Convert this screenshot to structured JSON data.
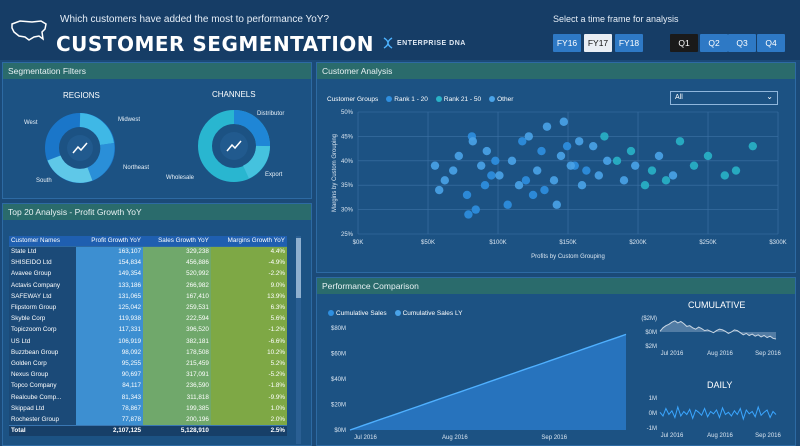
{
  "header": {
    "question": "Which customers have added the most to performance YoY?",
    "title": "CUSTOMER SEGMENTATION",
    "brand": "ENTERPRISE DNA",
    "timeframe_label": "Select a time frame for analysis",
    "fiscal_years": [
      "FY16",
      "FY17",
      "FY18"
    ],
    "selected_fy": "FY17",
    "quarters": [
      "Q1",
      "Q2",
      "Q3",
      "Q4"
    ],
    "selected_quarter": "Q1"
  },
  "filters": {
    "title": "Segmentation Filters",
    "regions_title": "REGIONS",
    "regions": [
      "West",
      "Midwest",
      "Northeast",
      "South"
    ],
    "channels_title": "CHANNELS",
    "channels": [
      "Distributor",
      "Export",
      "Wholesale"
    ]
  },
  "top20": {
    "title": "Top 20 Analysis - Profit Growth YoY",
    "columns": [
      "Customer Names",
      "Profit Growth YoY",
      "Sales Growth YoY",
      "Margins Growth YoY"
    ],
    "rows": [
      [
        "State Ltd",
        "163,107",
        "329,238",
        "4.4%"
      ],
      [
        "SHISEIDO Ltd",
        "154,834",
        "456,886",
        "-4.9%"
      ],
      [
        "Avavee Group",
        "149,354",
        "520,992",
        "-2.2%"
      ],
      [
        "Actavis Company",
        "133,186",
        "266,982",
        "9.0%"
      ],
      [
        "SAFEWAY Ltd",
        "131,065",
        "167,410",
        "13.9%"
      ],
      [
        "Flipstorm Group",
        "125,042",
        "259,531",
        "6.3%"
      ],
      [
        "Skyble Corp",
        "119,938",
        "222,594",
        "5.6%"
      ],
      [
        "Topiczoom Corp",
        "117,331",
        "396,520",
        "-1.2%"
      ],
      [
        "US Ltd",
        "106,919",
        "382,181",
        "-6.6%"
      ],
      [
        "Buzzbean Group",
        "98,092",
        "178,508",
        "10.2%"
      ],
      [
        "Golden Corp",
        "95,255",
        "215,459",
        "5.2%"
      ],
      [
        "Nexus Group",
        "90,697",
        "317,091",
        "-5.2%"
      ],
      [
        "Topco Company",
        "84,117",
        "236,590",
        "-1.8%"
      ],
      [
        "Realcube Comp...",
        "81,343",
        "311,818",
        "-9.9%"
      ],
      [
        "Skippad Ltd",
        "78,867",
        "199,385",
        "1.0%"
      ],
      [
        "Rochester Group",
        "77,878",
        "200,196",
        "2.0%"
      ]
    ],
    "total": [
      "Total",
      "2,107,125",
      "5,128,910",
      "2.5%"
    ]
  },
  "customer_analysis": {
    "title": "Customer Analysis",
    "legend_title": "Customer Groups",
    "legend": [
      "Rank 1 - 20",
      "Rank 21 - 50",
      "Other"
    ],
    "dropdown_value": "All",
    "colors": {
      "rank1": "#2f8fe0",
      "rank21": "#29b3c7",
      "other": "#4aa3e8"
    }
  },
  "chart_data": [
    {
      "type": "scatter",
      "title": "",
      "xlabel": "Profits by Custom Grouping",
      "ylabel": "Margins by Custom Grouping",
      "x_ticks": [
        "$0K",
        "$50K",
        "$100K",
        "$150K",
        "$200K",
        "$250K",
        "$300K"
      ],
      "y_ticks": [
        "25%",
        "30%",
        "35%",
        "40%",
        "45%",
        "50%"
      ],
      "xlim": [
        0,
        300000
      ],
      "ylim": [
        0.25,
        0.5
      ],
      "series": [
        {
          "name": "Rank 1 - 20",
          "points": [
            [
              163107,
              0.38
            ],
            [
              154834,
              0.39
            ],
            [
              149354,
              0.43
            ],
            [
              133186,
              0.34
            ],
            [
              131065,
              0.42
            ],
            [
              125042,
              0.33
            ],
            [
              119938,
              0.36
            ],
            [
              117331,
              0.44
            ],
            [
              106919,
              0.31
            ],
            [
              98092,
              0.4
            ],
            [
              95255,
              0.37
            ],
            [
              90697,
              0.35
            ],
            [
              84117,
              0.3
            ],
            [
              81343,
              0.45
            ],
            [
              78867,
              0.29
            ],
            [
              77878,
              0.33
            ]
          ]
        },
        {
          "name": "Rank 21 - 50",
          "points": [
            [
              185000,
              0.4
            ],
            [
              195000,
              0.42
            ],
            [
              210000,
              0.38
            ],
            [
              220000,
              0.36
            ],
            [
              230000,
              0.44
            ],
            [
              240000,
              0.39
            ],
            [
              250000,
              0.41
            ],
            [
              262000,
              0.37
            ],
            [
              270000,
              0.38
            ],
            [
              282000,
              0.43
            ],
            [
              176000,
              0.45
            ],
            [
              205000,
              0.35
            ]
          ]
        },
        {
          "name": "Other",
          "points": [
            [
              62000,
              0.36
            ],
            [
              68000,
              0.38
            ],
            [
              72000,
              0.41
            ],
            [
              58000,
              0.34
            ],
            [
              88000,
              0.39
            ],
            [
              92000,
              0.42
            ],
            [
              101000,
              0.37
            ],
            [
              110000,
              0.4
            ],
            [
              122000,
              0.45
            ],
            [
              128000,
              0.38
            ],
            [
              140000,
              0.36
            ],
            [
              145000,
              0.41
            ],
            [
              152000,
              0.39
            ],
            [
              160000,
              0.35
            ],
            [
              168000,
              0.43
            ],
            [
              172000,
              0.37
            ],
            [
              178000,
              0.4
            ],
            [
              190000,
              0.36
            ],
            [
              198000,
              0.39
            ],
            [
              215000,
              0.41
            ],
            [
              225000,
              0.37
            ],
            [
              55000,
              0.39
            ],
            [
              82000,
              0.44
            ],
            [
              115000,
              0.35
            ],
            [
              135000,
              0.47
            ],
            [
              147000,
              0.48
            ],
            [
              158000,
              0.44
            ],
            [
              142000,
              0.31
            ]
          ]
        }
      ]
    },
    {
      "type": "area",
      "title": "Performance Comparison",
      "legend": [
        "Cumulative Sales",
        "Cumulative Sales LY"
      ],
      "x_ticks": [
        "Jul 2016",
        "Aug 2016",
        "Sep 2016"
      ],
      "y_ticks": [
        "$0M",
        "$20M",
        "$40M",
        "$60M",
        "$80M"
      ],
      "ylim": [
        0,
        80
      ],
      "x": [
        0,
        1
      ],
      "values": [
        0,
        75
      ]
    },
    {
      "type": "line",
      "title": "CUMULATIVE",
      "x_ticks": [
        "Jul 2016",
        "Aug 2016",
        "Sep 2016"
      ],
      "y_ticks": [
        "($2M)",
        "$0M",
        "$2M"
      ],
      "ylim": [
        -2,
        2
      ],
      "values": [
        0.1,
        0.6,
        0.9,
        1.1,
        1.4,
        1.6,
        1.3,
        1.5,
        1.2,
        0.8,
        0.9,
        0.6,
        0.4,
        0.7,
        0.5,
        0.2,
        0.3,
        0.1,
        -0.1,
        0.2,
        0.4,
        0.3,
        0.1,
        -0.2,
        0.0,
        0.3,
        0.2,
        -0.1,
        -0.4,
        -0.2,
        -0.5,
        -0.3,
        -0.6,
        -0.4,
        -0.7,
        -0.5,
        -0.8,
        -0.6,
        -0.9,
        -1.0
      ]
    },
    {
      "type": "line",
      "title": "DAILY",
      "y_ticks": [
        "1M",
        "0M",
        "-1M"
      ],
      "x_ticks": [
        "Jul 2016",
        "Aug 2016",
        "Sep 2016"
      ],
      "ylim": [
        -1,
        1
      ],
      "values": [
        0.05,
        -0.2,
        0.3,
        -0.1,
        0.15,
        -0.3,
        0.4,
        -0.2,
        0.1,
        -0.1,
        0.25,
        -0.35,
        0.2,
        0.05,
        -0.15,
        0.3,
        -0.25,
        0.1,
        -0.05,
        0.2,
        -0.3,
        0.35,
        -0.1,
        0.05,
        -0.2,
        0.15,
        -0.1,
        0.3,
        -0.4,
        0.2,
        -0.05,
        0.1,
        -0.25,
        0.4,
        -0.15,
        0.05,
        0.2,
        -0.3,
        0.1,
        -0.1
      ]
    }
  ],
  "performance": {
    "title": "Performance Comparison"
  }
}
